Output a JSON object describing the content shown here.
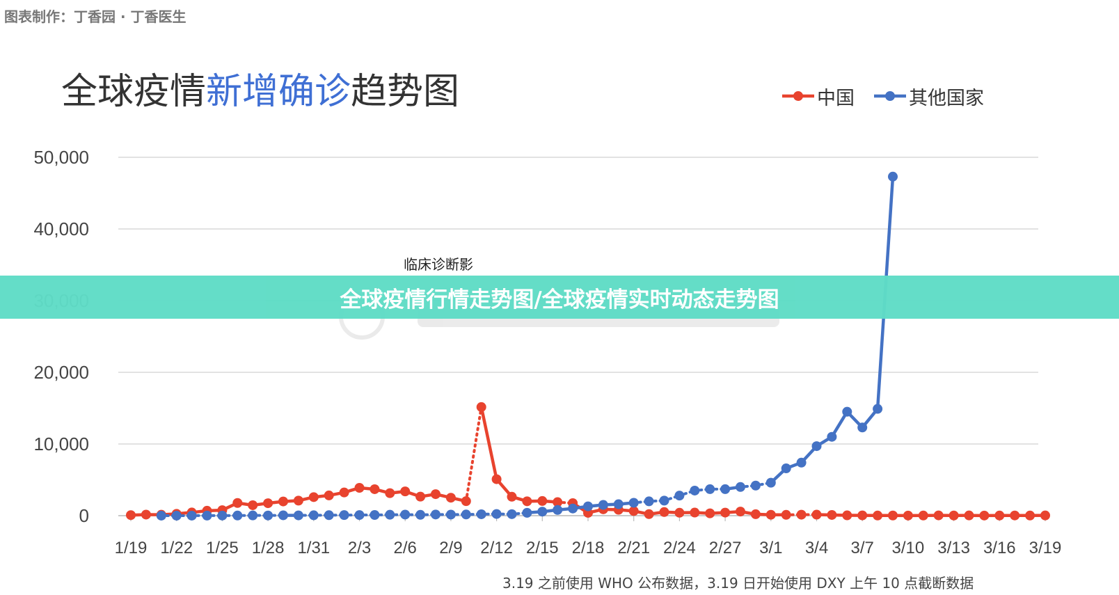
{
  "credit": "图表制作：丁香园 · 丁香医生",
  "banner": "全球疫情行情走势图/全球疫情实时动态走势图",
  "floating_caption": "临床诊断影",
  "footnote": "3.19 之前使用 WHO 公布数据，3.19 日开始使用 DXY 上午 10 点截断数据",
  "colors": {
    "china": "#e8432e",
    "other": "#4472c4",
    "grid": "#d9d9d9",
    "title_accent": "#3f6fd4"
  },
  "chart_data": {
    "type": "line",
    "title_parts": [
      {
        "text": "全球疫情",
        "accent": false
      },
      {
        "text": "新增确诊",
        "accent": true
      },
      {
        "text": "趋势图",
        "accent": false
      }
    ],
    "ylim": [
      0,
      50000
    ],
    "yticks": [
      0,
      10000,
      20000,
      30000,
      40000,
      50000
    ],
    "ytick_labels": [
      "0",
      "10,000",
      "20,000",
      "30,000",
      "40,000",
      "50,000"
    ],
    "x_start": "1/19",
    "xtick_labels": [
      "1/19",
      "1/22",
      "1/25",
      "1/28",
      "1/31",
      "2/3",
      "2/6",
      "2/9",
      "2/12",
      "2/15",
      "2/18",
      "2/21",
      "2/24",
      "2/27",
      "3/1",
      "3/4",
      "3/7",
      "3/10",
      "3/13",
      "3/16",
      "3/19"
    ],
    "grid": true,
    "legend_position": "top-right",
    "series": [
      {
        "name": "中国",
        "color": "#e8432e",
        "start_index": 0,
        "values": [
          77,
          149,
          131,
          259,
          444,
          688,
          769,
          1771,
          1459,
          1737,
          1981,
          2099,
          2589,
          2825,
          3235,
          3884,
          3694,
          3143,
          3385,
          2652,
          3001,
          2506,
          2024,
          15153,
          5090,
          2641,
          2008,
          2048,
          1888,
          1749,
          391,
          889,
          823,
          648,
          214,
          508,
          409,
          433,
          327,
          427,
          573,
          202,
          125,
          119,
          139,
          143,
          99,
          44,
          40,
          19,
          24,
          15,
          21,
          39,
          25,
          34,
          16,
          20,
          30,
          20,
          35
        ],
        "dotted_segments": [
          [
            22,
            23
          ],
          [
            28,
            29
          ],
          [
            43,
            44
          ],
          [
            44,
            45
          ]
        ]
      },
      {
        "name": "其他国家",
        "color": "#4472c4",
        "start_index": 2,
        "values": [
          3,
          5,
          3,
          13,
          16,
          20,
          33,
          29,
          50,
          40,
          55,
          71,
          86,
          90,
          98,
          128,
          147,
          120,
          160,
          150,
          166,
          200,
          234,
          209,
          400,
          560,
          800,
          1000,
          1300,
          1500,
          1600,
          1800,
          2000,
          2100,
          2800,
          3500,
          3700,
          3700,
          4000,
          4200,
          4600,
          6600,
          7400,
          9700,
          11000,
          14500,
          12300,
          14900,
          47300
        ],
        "dotted_segments": [
          [
            0,
            8
          ],
          [
            9,
            24
          ],
          [
            31,
            37
          ],
          [
            38,
            40
          ]
        ]
      }
    ]
  }
}
